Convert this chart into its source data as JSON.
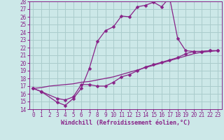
{
  "bg_color": "#cce8e8",
  "line_color": "#882288",
  "grid_color": "#aacccc",
  "xlabel": "Windchill (Refroidissement éolien,°C)",
  "ylim": [
    14,
    28
  ],
  "xlim": [
    -0.5,
    23.5
  ],
  "yticks": [
    14,
    15,
    16,
    17,
    18,
    19,
    20,
    21,
    22,
    23,
    24,
    25,
    26,
    27,
    28
  ],
  "xticks": [
    0,
    1,
    2,
    3,
    4,
    5,
    6,
    7,
    8,
    9,
    10,
    11,
    12,
    13,
    14,
    15,
    16,
    17,
    18,
    19,
    20,
    21,
    22,
    23
  ],
  "curve1_x": [
    0,
    1,
    3,
    4,
    5,
    6,
    7,
    8,
    9,
    10,
    11,
    12,
    13,
    14,
    15,
    16,
    17,
    18,
    19,
    20,
    21,
    22,
    23
  ],
  "curve1_y": [
    16.7,
    16.3,
    14.9,
    14.5,
    15.4,
    16.7,
    19.3,
    22.8,
    24.2,
    24.7,
    26.1,
    26.0,
    27.3,
    27.5,
    27.9,
    27.3,
    28.5,
    23.2,
    21.6,
    21.5,
    21.5,
    21.6,
    21.6
  ],
  "curve2_x": [
    0,
    1,
    3,
    4,
    5,
    6,
    7,
    8,
    9,
    10,
    11,
    12,
    13,
    14,
    15,
    16,
    17,
    18,
    19,
    20,
    21,
    22,
    23
  ],
  "curve2_y": [
    16.7,
    16.3,
    15.4,
    15.2,
    15.6,
    17.2,
    17.2,
    17.0,
    17.0,
    17.5,
    18.2,
    18.5,
    19.0,
    19.5,
    19.8,
    20.1,
    20.4,
    20.7,
    21.2,
    21.5,
    21.5,
    21.6,
    21.6
  ],
  "curve3_x": [
    0,
    1,
    2,
    3,
    4,
    5,
    6,
    7,
    8,
    9,
    10,
    11,
    12,
    13,
    14,
    15,
    16,
    17,
    18,
    19,
    20,
    21,
    22,
    23
  ],
  "curve3_y": [
    16.7,
    16.8,
    17.0,
    17.1,
    17.2,
    17.3,
    17.5,
    17.6,
    17.8,
    18.0,
    18.2,
    18.5,
    18.8,
    19.1,
    19.4,
    19.7,
    20.0,
    20.3,
    20.6,
    20.9,
    21.2,
    21.4,
    21.5,
    21.6
  ],
  "tick_fontsize": 5.5,
  "xlabel_fontsize": 6.0,
  "marker_size": 2.5,
  "linewidth": 0.9
}
